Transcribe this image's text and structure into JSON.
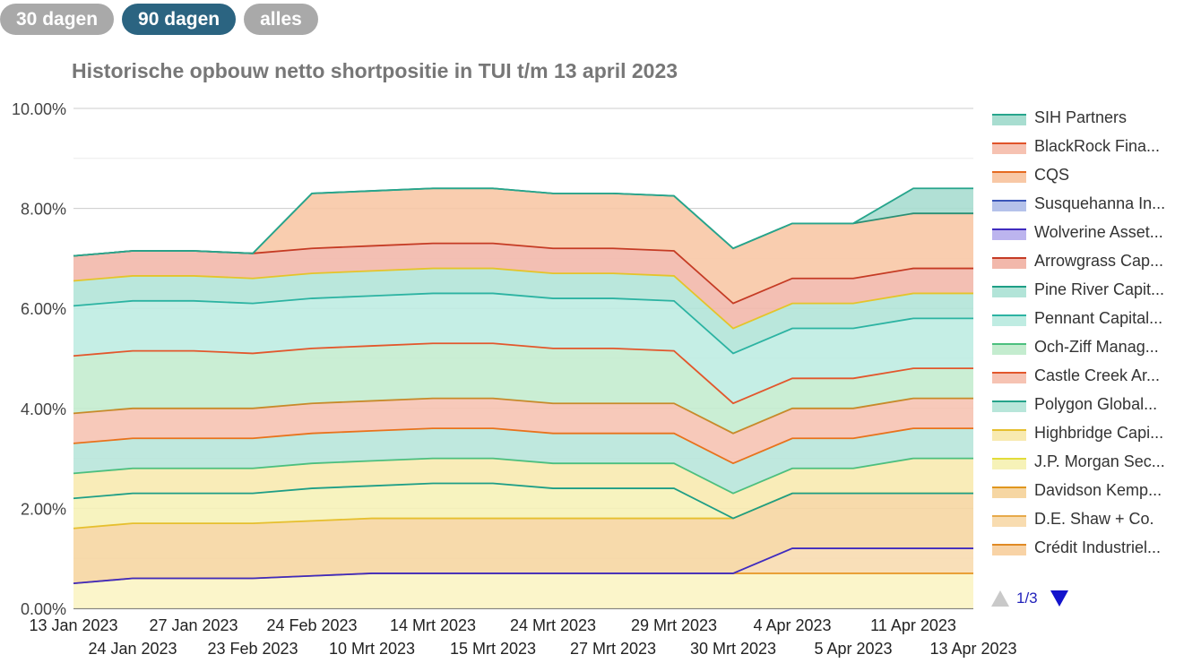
{
  "tabs": [
    {
      "label": "30 dagen",
      "active": false
    },
    {
      "label": "90 dagen",
      "active": true
    },
    {
      "label": "alles",
      "active": false
    }
  ],
  "pager": {
    "label": "1/3"
  },
  "chart_data": {
    "type": "area",
    "stacked": true,
    "title": "Historische opbouw netto shortpositie in TUI t/m 13 april 2023",
    "ylim": [
      0,
      10
    ],
    "yticks": [
      "0.00%",
      "2.00%",
      "4.00%",
      "6.00%",
      "8.00%",
      "10.00%"
    ],
    "grid": true,
    "legend_position": "right",
    "x_top_row": [
      "13 Jan 2023",
      "27 Jan 2023",
      "24 Feb 2023",
      "14 Mrt 2023",
      "24 Mrt 2023",
      "29 Mrt 2023",
      "4 Apr 2023",
      "11 Apr 2023"
    ],
    "x_bottom_row": [
      "24 Jan 2023",
      "23 Feb 2023",
      "10 Mrt 2023",
      "15 Mrt 2023",
      "27 Mrt 2023",
      "30 Mrt 2023",
      "5 Apr 2023",
      "13 Apr 2023"
    ],
    "x": [
      "13 Jan 2023",
      "24 Jan 2023",
      "27 Jan 2023",
      "23 Feb 2023",
      "24 Feb 2023",
      "10 Mrt 2023",
      "14 Mrt 2023",
      "15 Mrt 2023",
      "24 Mrt 2023",
      "27 Mrt 2023",
      "29 Mrt 2023",
      "30 Mrt 2023",
      "4 Apr 2023",
      "5 Apr 2023",
      "11 Apr 2023",
      "13 Apr 2023"
    ],
    "cumulative_series": [
      {
        "name": "Crédit Industriel...",
        "color": "#e89a2e",
        "values": [
          0.5,
          0.6,
          0.6,
          0.6,
          0.65,
          0.7,
          0.7,
          0.7,
          0.7,
          0.7,
          0.7,
          0.7,
          0.7,
          0.7,
          0.7,
          0.7
        ]
      },
      {
        "name": "D.E. Shaw + Co.",
        "color": "#3f2bbf",
        "values": [
          0.5,
          0.6,
          0.6,
          0.6,
          0.65,
          0.7,
          0.7,
          0.7,
          0.7,
          0.7,
          0.7,
          0.7,
          1.2,
          1.2,
          1.2,
          1.2
        ]
      },
      {
        "name": "Davidson Kemp...",
        "color": "#e6bf2e",
        "values": [
          1.6,
          1.7,
          1.7,
          1.7,
          1.75,
          1.8,
          1.8,
          1.8,
          1.8,
          1.8,
          1.8,
          1.8,
          2.3,
          2.3,
          2.3,
          2.3
        ]
      },
      {
        "name": "J.P. Morgan Sec...",
        "color": "#1e9e86",
        "values": [
          2.2,
          2.3,
          2.3,
          2.3,
          2.4,
          2.45,
          2.5,
          2.5,
          2.4,
          2.4,
          2.4,
          1.8,
          2.3,
          2.3,
          2.3,
          2.3
        ]
      },
      {
        "name": "Highbridge Capi...",
        "color": "#4cbf7e",
        "values": [
          2.7,
          2.8,
          2.8,
          2.8,
          2.9,
          2.95,
          3.0,
          3.0,
          2.9,
          2.9,
          2.9,
          2.3,
          2.8,
          2.8,
          3.0,
          3.0
        ]
      },
      {
        "name": "Polygon Global...",
        "color": "#e8721c",
        "values": [
          3.3,
          3.4,
          3.4,
          3.4,
          3.5,
          3.55,
          3.6,
          3.6,
          3.5,
          3.5,
          3.5,
          2.9,
          3.4,
          3.4,
          3.6,
          3.6
        ]
      },
      {
        "name": "Castle Creek Ar...",
        "color": "#c78a2a",
        "values": [
          3.9,
          4.0,
          4.0,
          4.0,
          4.1,
          4.15,
          4.2,
          4.2,
          4.1,
          4.1,
          4.1,
          3.5,
          4.0,
          4.0,
          4.2,
          4.2
        ]
      },
      {
        "name": "Och-Ziff Manag...",
        "color": "#e2572c",
        "values": [
          5.05,
          5.15,
          5.15,
          5.1,
          5.2,
          5.25,
          5.3,
          5.3,
          5.2,
          5.2,
          5.15,
          4.1,
          4.6,
          4.6,
          4.8,
          4.8
        ]
      },
      {
        "name": "Pennant Capital...",
        "color": "#2cb3a2",
        "values": [
          6.05,
          6.15,
          6.15,
          6.1,
          6.2,
          6.25,
          6.3,
          6.3,
          6.2,
          6.2,
          6.15,
          5.1,
          5.6,
          5.6,
          5.8,
          5.8
        ]
      },
      {
        "name": "Pine River Capit...",
        "color": "#e4c42a",
        "values": [
          6.55,
          6.65,
          6.65,
          6.6,
          6.7,
          6.75,
          6.8,
          6.8,
          6.7,
          6.7,
          6.65,
          5.6,
          6.1,
          6.1,
          6.3,
          6.3
        ]
      },
      {
        "name": "Arrowgrass Cap...",
        "color": "#c53b24",
        "values": [
          7.05,
          7.15,
          7.15,
          7.1,
          7.2,
          7.25,
          7.3,
          7.3,
          7.2,
          7.2,
          7.15,
          6.1,
          6.6,
          6.6,
          6.8,
          6.8
        ]
      },
      {
        "name": "CQS",
        "color": "#2a8f74",
        "values": [
          7.05,
          7.15,
          7.15,
          7.1,
          8.3,
          8.35,
          8.4,
          8.4,
          8.3,
          8.3,
          8.25,
          7.2,
          7.7,
          7.7,
          7.9,
          7.9
        ]
      },
      {
        "name": "SIH Partners",
        "color": "#27a58c",
        "values": [
          7.05,
          7.15,
          7.15,
          7.1,
          8.3,
          8.35,
          8.4,
          8.4,
          8.3,
          8.3,
          8.25,
          7.2,
          7.7,
          7.7,
          8.4,
          8.4
        ]
      }
    ],
    "legend": [
      {
        "name": "SIH Partners",
        "color": "#27a58c",
        "fill": "#a8ddd0"
      },
      {
        "name": "BlackRock Fina...",
        "color": "#e0532a",
        "fill": "#f6c2b2"
      },
      {
        "name": "CQS",
        "color": "#e56a20",
        "fill": "#f8c8a6"
      },
      {
        "name": "Susquehanna In...",
        "color": "#3a56b8",
        "fill": "#b5c2ea"
      },
      {
        "name": "Wolverine Asset...",
        "color": "#3f2bbf",
        "fill": "#bcb4ee"
      },
      {
        "name": "Arrowgrass Cap...",
        "color": "#c53b24",
        "fill": "#f2b8ab"
      },
      {
        "name": "Pine River Capit...",
        "color": "#1e9e86",
        "fill": "#b2e4d8"
      },
      {
        "name": "Pennant Capital...",
        "color": "#2cb3a2",
        "fill": "#bfece2"
      },
      {
        "name": "Och-Ziff Manag...",
        "color": "#4cbf7e",
        "fill": "#c4eccf"
      },
      {
        "name": "Castle Creek Ar...",
        "color": "#e2572c",
        "fill": "#f6c3b3"
      },
      {
        "name": "Polygon Global...",
        "color": "#25a38a",
        "fill": "#b8e6da"
      },
      {
        "name": "Highbridge Capi...",
        "color": "#e6bf2e",
        "fill": "#f8eab0"
      },
      {
        "name": "J.P. Morgan Sec...",
        "color": "#e2dc3a",
        "fill": "#f6f2b8"
      },
      {
        "name": "Davidson Kemp...",
        "color": "#e0961e",
        "fill": "#f6d6a2"
      },
      {
        "name": "D.E. Shaw + Co.",
        "color": "#e7a94a",
        "fill": "#f8dcb0"
      },
      {
        "name": "Crédit Industriel...",
        "color": "#e08a24",
        "fill": "#f8d3a6"
      }
    ]
  }
}
